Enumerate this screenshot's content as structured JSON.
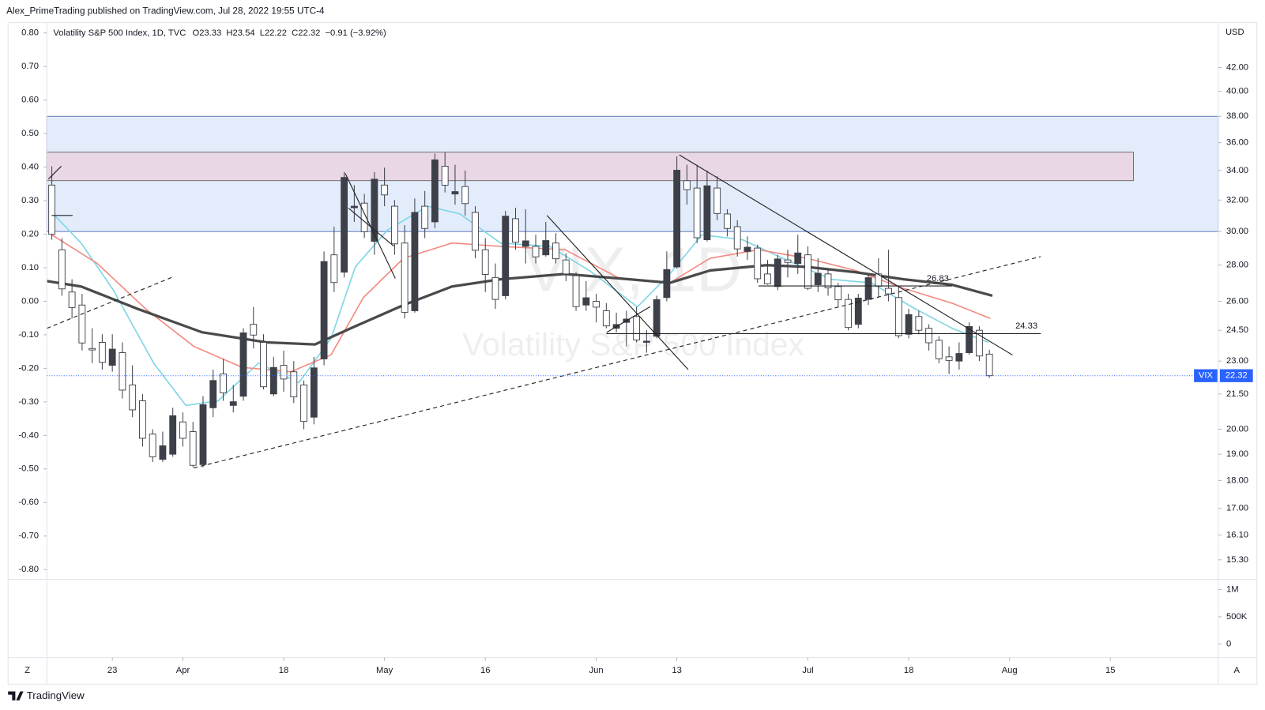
{
  "header": {
    "published": "Alex_PrimeTrading published on TradingView.com, Jul 28, 2022 19:55 UTC-4"
  },
  "footer": {
    "brand": "TradingView"
  },
  "toolbar": {
    "left": "Z",
    "right": "A"
  },
  "chart_data": {
    "type": "candlestick",
    "legend": {
      "name": "Volatility S&P 500 Index, 1D, TVC",
      "open": "O23.33",
      "high": "H23.54",
      "low": "L22.22",
      "close": "C22.32",
      "change": "−0.91 (−3.92%)"
    },
    "watermark": {
      "symbol": "VIX, 1D",
      "description": "Volatility S&P 500 Index"
    },
    "currency": "USD",
    "log_scale": true,
    "up_color": "#3d4049",
    "down_color": "#ffffff",
    "wick_color": "#3d4049",
    "x": [
      0,
      1,
      2,
      3,
      4,
      5,
      6,
      7,
      8,
      9,
      10,
      11,
      12,
      13,
      14,
      15,
      16,
      17,
      18,
      19,
      20,
      21,
      22,
      23,
      24,
      25,
      26,
      27,
      28,
      29,
      30,
      31,
      32,
      33,
      34,
      35,
      36,
      37,
      38,
      39,
      40,
      41,
      42,
      43,
      44,
      45,
      46,
      47,
      48,
      49,
      50,
      51,
      52,
      53,
      54,
      55,
      56,
      57,
      58,
      59,
      60,
      61,
      62,
      63,
      64,
      65,
      66,
      67,
      68,
      69,
      70,
      71,
      72,
      73,
      74,
      75,
      76,
      77,
      78,
      79,
      80,
      81,
      82,
      83,
      84,
      85,
      86,
      87,
      88,
      89,
      90,
      91,
      92,
      93
    ],
    "open": [
      33.0,
      28.9,
      26.5,
      25.8,
      23.6,
      23.9,
      22.8,
      23.4,
      21.9,
      21.2,
      19.8,
      18.8,
      19.0,
      20.3,
      19.9,
      18.6,
      20.9,
      22.4,
      21.0,
      21.4,
      24.8,
      23.9,
      21.5,
      22.8,
      22.5,
      21.9,
      20.5,
      23.1,
      28.6,
      27.6,
      31.5,
      31.8,
      29.4,
      33.0,
      31.6,
      29.3,
      25.5,
      31.6,
      30.6,
      34.3,
      32.4,
      32.9,
      31.2,
      28.9,
      27.3,
      26.3,
      30.8,
      29.1,
      29.1,
      28.6,
      29.3,
      28.3,
      27.4,
      25.8,
      26.0,
      25.5,
      24.6,
      24.9,
      25.2,
      23.9,
      24.2,
      26.2,
      27.9,
      33.3,
      32.8,
      29.5,
      32.8,
      31.1,
      30.3,
      28.8,
      29.0,
      27.5,
      26.8,
      28.3,
      28.1,
      28.6,
      26.9,
      27.5,
      26.8,
      26.1,
      24.8,
      26.1,
      27.5,
      26.7,
      26.2,
      24.3,
      25.2,
      24.6,
      24.0,
      23.2,
      23.0,
      23.4,
      24.5,
      23.33
    ],
    "high": [
      34.3,
      29.6,
      27.2,
      26.4,
      24.6,
      24.3,
      24.3,
      23.9,
      22.8,
      21.5,
      20.0,
      19.9,
      20.9,
      20.7,
      20.3,
      21.4,
      22.6,
      23.1,
      21.9,
      24.6,
      25.7,
      24.3,
      23.2,
      23.5,
      23.0,
      22.1,
      23.2,
      28.8,
      30.3,
      33.9,
      33.0,
      32.4,
      33.9,
      34.2,
      32.0,
      30.4,
      32.1,
      32.6,
      35.2,
      35.3,
      34.4,
      34.0,
      31.6,
      29.6,
      28.1,
      31.3,
      31.5,
      31.4,
      29.8,
      30.6,
      29.9,
      28.7,
      27.6,
      27.1,
      26.4,
      25.9,
      25.4,
      25.5,
      25.7,
      24.5,
      26.3,
      28.8,
      35.0,
      34.4,
      34.4,
      34.0,
      33.6,
      31.4,
      30.7,
      29.7,
      29.2,
      28.3,
      28.6,
      28.9,
      29.8,
      29.1,
      28.4,
      27.8,
      27.0,
      26.4,
      26.4,
      27.5,
      28.4,
      28.9,
      26.8,
      25.6,
      25.5,
      24.8,
      24.2,
      23.7,
      23.9,
      24.9,
      24.7,
      23.54
    ],
    "low": [
      29.5,
      26.3,
      25.1,
      23.5,
      22.9,
      22.6,
      22.5,
      21.3,
      20.5,
      19.3,
      18.7,
      18.7,
      18.9,
      19.3,
      18.5,
      18.5,
      20.5,
      21.2,
      20.7,
      21.2,
      23.6,
      21.7,
      21.4,
      21.6,
      21.1,
      20.0,
      20.2,
      22.8,
      26.5,
      27.3,
      30.6,
      29.6,
      28.6,
      31.6,
      28.6,
      25.1,
      25.4,
      29.6,
      30.2,
      32.5,
      31.7,
      31.0,
      28.4,
      26.5,
      25.6,
      26.1,
      28.9,
      28.1,
      28.1,
      28.5,
      28.1,
      27.1,
      25.5,
      25.5,
      24.9,
      24.6,
      24.4,
      23.7,
      23.9,
      23.4,
      24.1,
      26.0,
      27.8,
      31.7,
      29.3,
      29.4,
      30.7,
      29.7,
      28.5,
      28.3,
      27.0,
      26.9,
      26.6,
      27.3,
      27.5,
      26.6,
      26.5,
      26.3,
      25.7,
      24.5,
      24.6,
      25.8,
      26.2,
      26.0,
      24.1,
      24.1,
      24.3,
      23.5,
      22.9,
      22.4,
      22.6,
      23.3,
      23.0,
      22.22
    ],
    "close": [
      29.83,
      26.67,
      25.67,
      23.87,
      23.53,
      22.94,
      23.57,
      21.67,
      20.81,
      19.63,
      18.9,
      19.33,
      20.56,
      19.63,
      18.57,
      21.03,
      22.1,
      21.55,
      21.16,
      24.37,
      24.26,
      21.82,
      22.7,
      22.17,
      21.37,
      20.32,
      22.68,
      28.21,
      27.02,
      33.52,
      31.6,
      29.99,
      33.4,
      32.34,
      29.25,
      25.42,
      31.2,
      30.19,
      34.75,
      32.99,
      32.56,
      31.77,
      28.87,
      27.47,
      26.1,
      30.96,
      29.35,
      29.43,
      28.48,
      29.45,
      28.37,
      27.5,
      25.72,
      26.19,
      25.69,
      24.72,
      24.79,
      25.07,
      24.02,
      23.96,
      26.09,
      27.75,
      34.02,
      32.69,
      29.62,
      32.95,
      31.13,
      30.19,
      28.95,
      29.05,
      27.23,
      26.95,
      28.36,
      28.16,
      28.71,
      26.7,
      27.54,
      26.73,
      26.08,
      24.64,
      26.17,
      27.29,
      26.82,
      26.4,
      24.23,
      25.3,
      24.5,
      23.88,
      23.11,
      23.03,
      23.36,
      24.69,
      23.24,
      22.32
    ],
    "moving_averages": [
      {
        "color": "#7fd6e4",
        "width": 1.6,
        "x": [
          0,
          2.9,
          6.1,
          10.1,
          13.3,
          16.5,
          20.5,
          24.5,
          27.7,
          30.1,
          33.3,
          37.3,
          40.5,
          44.5,
          49.4,
          53.3,
          58.1,
          61.3,
          64.5,
          68.5,
          72.5,
          77.3,
          81.3,
          85.3,
          89.3,
          92.9
        ],
        "values": [
          31.2,
          29.3,
          26.6,
          22.9,
          21.0,
          21.2,
          22.9,
          22.0,
          24.1,
          27.9,
          30.1,
          31.6,
          31.1,
          29.3,
          29.1,
          27.7,
          25.7,
          27.5,
          29.8,
          29.5,
          28.4,
          27.2,
          27.0,
          25.7,
          24.6,
          23.9
        ]
      },
      {
        "color": "#f28b82",
        "width": 1.6,
        "x": [
          0,
          4.5,
          9.3,
          14.1,
          18.9,
          23.7,
          27.7,
          30.9,
          34.9,
          39.7,
          44.5,
          50.9,
          56.5,
          61.3,
          65.3,
          70.1,
          74.9,
          79.7,
          84.5,
          89.3,
          93.1
        ],
        "values": [
          29.8,
          28.1,
          25.6,
          23.7,
          22.7,
          22.5,
          23.3,
          26.2,
          28.4,
          29.3,
          29.1,
          28.9,
          27.2,
          27.0,
          28.4,
          28.9,
          28.4,
          27.7,
          26.7,
          25.9,
          25.1
        ]
      },
      {
        "color": "#4a4a4a",
        "width": 3.2,
        "x": [
          -0.5,
          2.9,
          8.5,
          14.9,
          21.3,
          26.1,
          30.1,
          34.9,
          39.7,
          44.5,
          50.9,
          57.3,
          61.3,
          65.3,
          70.9,
          74.9,
          79.7,
          84.5,
          89.3,
          93.3
        ],
        "values": [
          27.1,
          26.8,
          25.6,
          24.4,
          23.9,
          23.8,
          24.7,
          25.8,
          26.8,
          27.2,
          27.5,
          27.2,
          27.0,
          27.7,
          28.0,
          27.9,
          27.6,
          27.2,
          26.9,
          26.3
        ]
      }
    ],
    "zones": [
      {
        "low": 30.0,
        "high": 38.0,
        "color": "#e3ecfb",
        "border": "#3f5fb0"
      },
      {
        "low": 33.3,
        "high": 35.3,
        "x_start": -0.5,
        "x_end": 107.3,
        "color": "#e9d7e5",
        "border": "#555555"
      }
    ],
    "levels": [
      {
        "value": 26.83,
        "x_start": 70.1,
        "x_end": 89.3
      },
      {
        "value": 24.33,
        "x_start": 55.0,
        "x_end": 98.1
      }
    ],
    "last_price": {
      "symbol": "VIX",
      "value": 22.32,
      "color": "#2962ff"
    },
    "xlim": [
      -0.5,
      115.7
    ],
    "xticks": [
      {
        "value": 6,
        "label": "23"
      },
      {
        "value": 13,
        "label": "Apr"
      },
      {
        "value": 23,
        "label": "18"
      },
      {
        "value": 33,
        "label": "May"
      },
      {
        "value": 43,
        "label": "16"
      },
      {
        "value": 54,
        "label": "Jun"
      },
      {
        "value": 62,
        "label": "13"
      },
      {
        "value": 75,
        "label": "Jul"
      },
      {
        "value": 85,
        "label": "18"
      },
      {
        "value": 95,
        "label": "Aug"
      },
      {
        "value": 105,
        "label": "15"
      }
    ],
    "ylim": [
      14.7,
      45.9
    ],
    "yticks": [
      {
        "value": 42,
        "label": "42.00"
      },
      {
        "value": 40,
        "label": "40.00"
      },
      {
        "value": 38,
        "label": "38.00"
      },
      {
        "value": 36,
        "label": "36.00"
      },
      {
        "value": 34,
        "label": "34.00"
      },
      {
        "value": 32,
        "label": "32.00"
      },
      {
        "value": 30,
        "label": "30.00"
      },
      {
        "value": 28,
        "label": "28.00"
      },
      {
        "value": 26,
        "label": "26.00"
      },
      {
        "value": 24.5,
        "label": "24.50"
      },
      {
        "value": 23,
        "label": "23.00"
      },
      {
        "value": 21.5,
        "label": "21.50"
      },
      {
        "value": 20,
        "label": "20.00"
      },
      {
        "value": 19,
        "label": "19.00"
      },
      {
        "value": 18,
        "label": "18.00"
      },
      {
        "value": 17,
        "label": "17.00"
      },
      {
        "value": 16.1,
        "label": "16.10"
      },
      {
        "value": 15.3,
        "label": "15.30"
      }
    ],
    "y2lim": [
      -0.829,
      0.826
    ],
    "y2ticks": [
      {
        "value": 0.8,
        "label": "0.80"
      },
      {
        "value": 0.7,
        "label": "0.70"
      },
      {
        "value": 0.6,
        "label": "0.60"
      },
      {
        "value": 0.5,
        "label": "0.50"
      },
      {
        "value": 0.4,
        "label": "0.40"
      },
      {
        "value": 0.3,
        "label": "0.30"
      },
      {
        "value": 0.2,
        "label": "0.20"
      },
      {
        "value": 0.1,
        "label": "0.10"
      },
      {
        "value": 0,
        "label": "0.00"
      },
      {
        "value": -0.1,
        "label": "-0.10"
      },
      {
        "value": -0.2,
        "label": "-0.20"
      },
      {
        "value": -0.3,
        "label": "-0.30"
      },
      {
        "value": -0.4,
        "label": "-0.40"
      },
      {
        "value": -0.5,
        "label": "-0.50"
      },
      {
        "value": -0.6,
        "label": "-0.60"
      },
      {
        "value": -0.7,
        "label": "-0.70"
      },
      {
        "value": -0.8,
        "label": "-0.80"
      }
    ],
    "volume_ylim": [
      -250000,
      1190000
    ],
    "volume_ticks": [
      {
        "value": 1000000,
        "label": "1M"
      },
      {
        "value": 500000,
        "label": "500K"
      },
      0
    ]
  }
}
